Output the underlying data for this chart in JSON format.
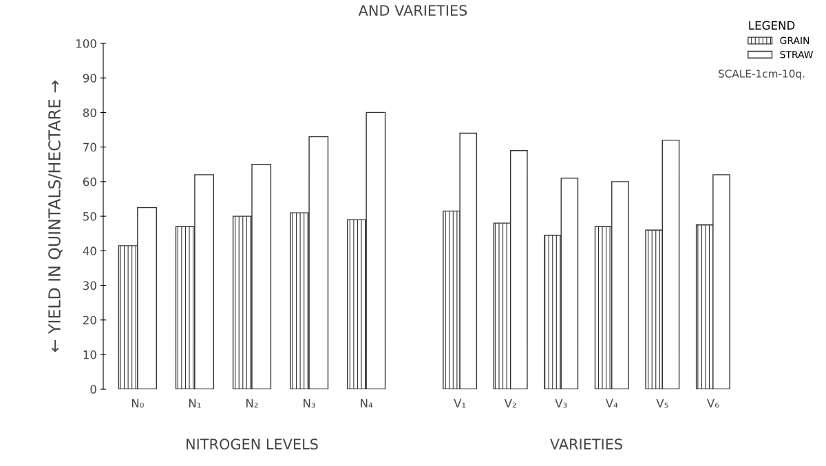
{
  "chart_data": [
    {
      "type": "bar",
      "title": "AND VARIETIES",
      "ylabel": "← YIELD IN QUINTALS/HECTARE →",
      "xlabel": "NITROGEN LEVELS",
      "categories": [
        "N₀",
        "N₁",
        "N₂",
        "N₃",
        "N₄"
      ],
      "series": [
        {
          "color": "#333333",
          "values": [
            41.5,
            47,
            50,
            51,
            49
          ]
        },
        {
          "color": "#333333",
          "values": [
            52.5,
            62,
            65,
            73,
            80
          ]
        }
      ],
      "ylim": [
        0,
        100
      ],
      "yticks": [
        0,
        10,
        20,
        30,
        40,
        50,
        60,
        70,
        80,
        90,
        100
      ],
      "grid": false
    },
    {
      "type": "bar",
      "xlabel": "VARIETIES",
      "legend_title": "LEGEND",
      "legend": "top right",
      "annotations": [
        "SCALE-1cm-10q."
      ],
      "categories": [
        "V₁",
        "V₂",
        "V₃",
        "V₄",
        "V₅",
        "V₆"
      ],
      "series": [
        {
          "name": "GRAIN",
          "color": "#333333",
          "values": [
            51.5,
            48,
            44.5,
            47,
            46,
            47.5
          ]
        },
        {
          "name": "STRAW",
          "color": "#333333",
          "values": [
            74,
            69,
            61,
            60,
            72,
            62
          ]
        }
      ],
      "ylim": [
        0,
        100
      ],
      "tick_labels": "x",
      "grid": false
    }
  ]
}
